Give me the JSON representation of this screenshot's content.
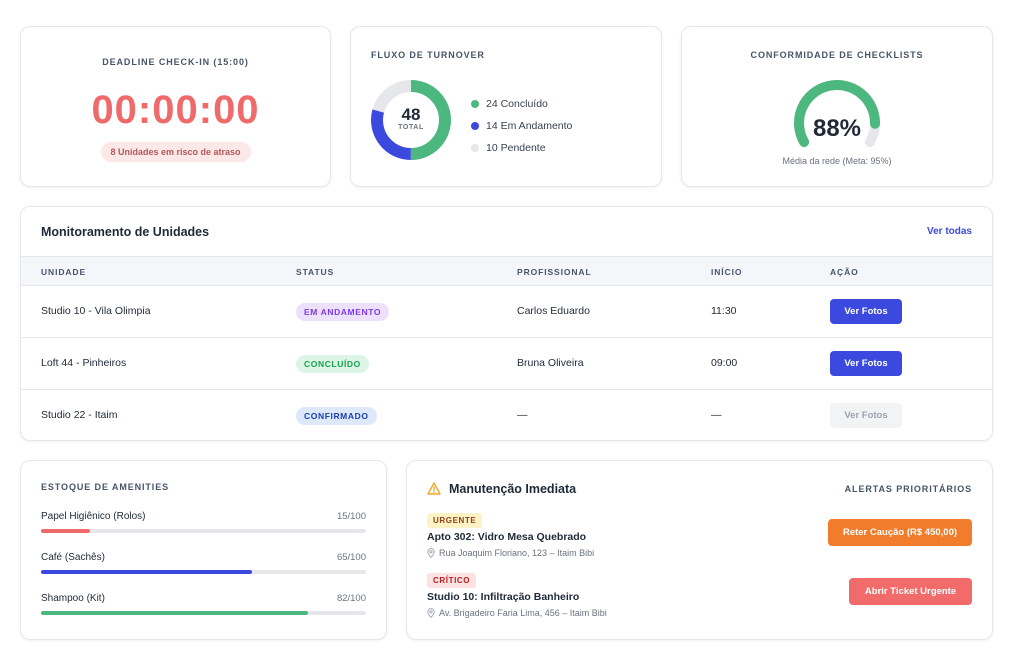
{
  "checkin": {
    "title": "DEADLINE CHECK-IN (15:00)",
    "timer": "00:00:00",
    "risk_text": "8 Unidades em risco de atraso"
  },
  "turnover": {
    "title": "FLUXO DE TURNOVER",
    "total": "48",
    "total_label": "TOTAL",
    "legend": [
      {
        "label": "24 Concluído",
        "value": 24,
        "color": "#4cb87f"
      },
      {
        "label": "14 Em Andamento",
        "value": 14,
        "color": "#3b49df"
      },
      {
        "label": "10 Pendente",
        "value": 10,
        "color": "#e5e7eb"
      }
    ]
  },
  "compliance": {
    "title": "CONFORMIDADE DE CHECKLISTS",
    "value": "88%",
    "fraction": 0.88,
    "subtitle": "Média da rede (Meta: 95%)",
    "color": "#4cb87f"
  },
  "monitor": {
    "title": "Monitoramento de Unidades",
    "link": "Ver todas",
    "columns": [
      "UNIDADE",
      "STATUS",
      "PROFISSIONAL",
      "INÍCIO",
      "AÇÃO"
    ],
    "rows": [
      {
        "unit": "Studio 10 - Vila Olimpia",
        "status": "EM ANDAMENTO",
        "status_kind": "andamento",
        "pro": "Carlos Eduardo",
        "start": "11:30",
        "action": "Ver Fotos",
        "enabled": true
      },
      {
        "unit": "Loft 44 - Pinheiros",
        "status": "CONCLUÍDO",
        "status_kind": "concluido",
        "pro": "Bruna Oliveira",
        "start": "09:00",
        "action": "Ver Fotos",
        "enabled": true
      },
      {
        "unit": "Studio 22 - Itaim",
        "status": "CONFIRMADO",
        "status_kind": "confirmado",
        "pro": "—",
        "start": "—",
        "action": "Ver Fotos",
        "enabled": false
      }
    ]
  },
  "amenities": {
    "title": "ESTOQUE DE AMENITIES",
    "items": [
      {
        "name": "Papel Higiênico (Rolos)",
        "value": "15/100",
        "level": 0.15,
        "color": "#ef6b6b"
      },
      {
        "name": "Café (Sachês)",
        "value": "65/100",
        "level": 0.65,
        "color": "#3b49df"
      },
      {
        "name": "Shampoo (Kit)",
        "value": "82/100",
        "level": 0.82,
        "color": "#4cb87f"
      }
    ]
  },
  "maintenance": {
    "title": "Manutenção Imediata",
    "caption": "ALERTAS PRIORITÁRIOS",
    "alerts": [
      {
        "badge": "URGENTE",
        "kind": "urgente",
        "title": "Apto 302: Vidro Mesa Quebrado",
        "address": "Rua Joaquim Floriano, 123 – Itaim Bibi",
        "action": "Reter Caução (R$ 450,00)",
        "btn": "orange"
      },
      {
        "badge": "CRÍTICO",
        "kind": "critico",
        "title": "Studio 10: Infiltração Banheiro",
        "address": "Av. Brigadeiro Faria Lima, 456 – Itaim Bibi",
        "action": "Abrir Ticket Urgente",
        "btn": "red"
      }
    ]
  }
}
